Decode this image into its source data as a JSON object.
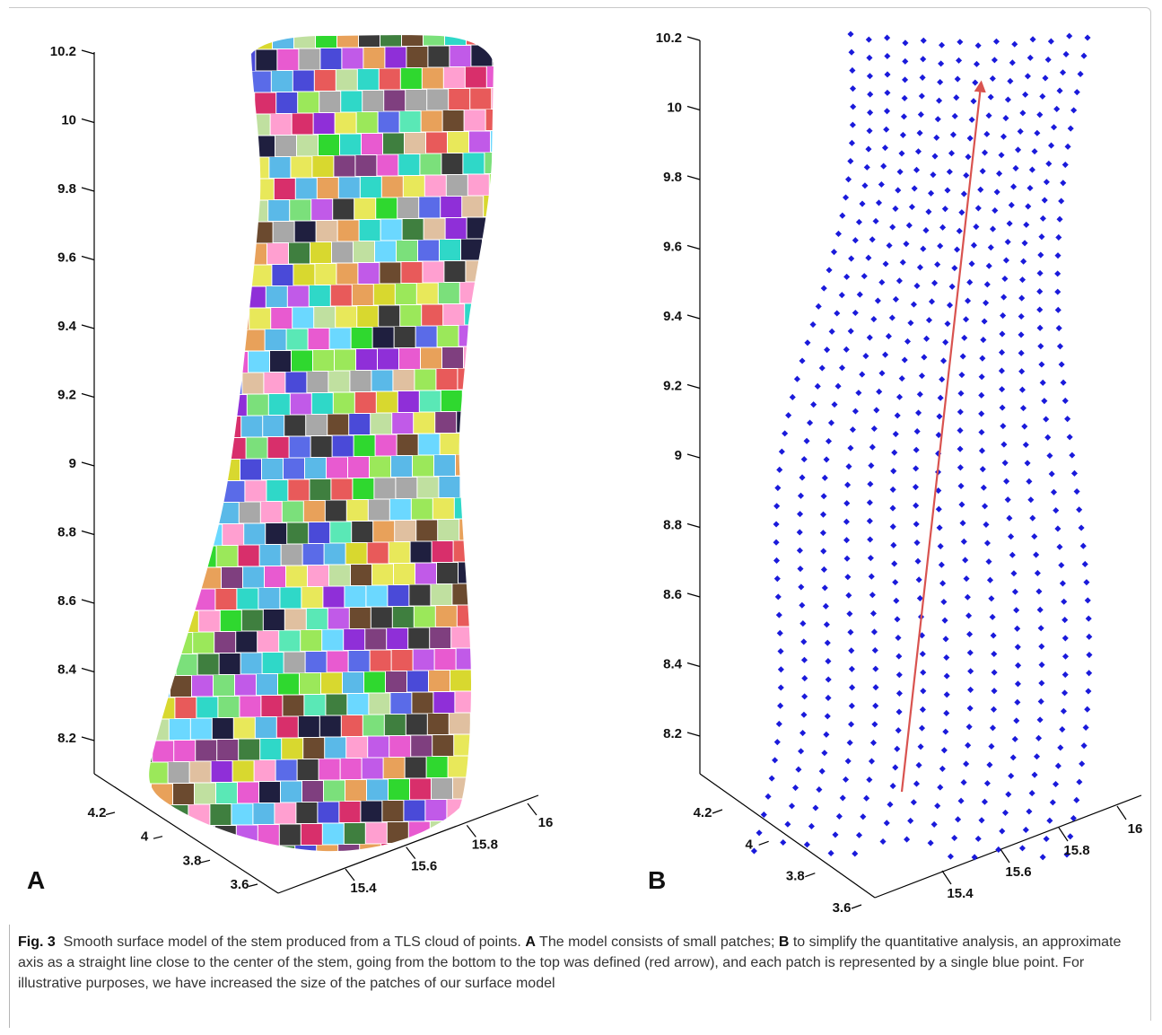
{
  "panel_a": {
    "label": "A",
    "z_ticks": [
      "10.2",
      "10",
      "9.8",
      "9.6",
      "9.4",
      "9.2",
      "9",
      "8.8",
      "8.6",
      "8.4",
      "8.2"
    ],
    "y_ticks": [
      "4.2",
      "4",
      "3.8",
      "3.6"
    ],
    "x_ticks": [
      "15.4",
      "15.6",
      "15.8",
      "16"
    ]
  },
  "panel_b": {
    "label": "B",
    "z_ticks": [
      "10.2",
      "10",
      "9.8",
      "9.6",
      "9.4",
      "9.2",
      "9",
      "8.8",
      "8.6",
      "8.4",
      "8.2"
    ],
    "y_ticks": [
      "4.2",
      "4",
      "3.8",
      "3.6"
    ],
    "x_ticks": [
      "15.4",
      "15.6",
      "15.8",
      "16"
    ]
  },
  "colors": {
    "points": "#1a1adb",
    "arrow": "#d9534f",
    "axes": "#000000"
  },
  "caption": {
    "fig_label": "Fig. 3",
    "text1": "Smooth surface model of the stem produced from a TLS cloud of points.",
    "label_a": "A",
    "text2": "The model consists of small patches;",
    "label_b": "B",
    "text3": "to simplify the quantitative analysis, an approximate axis as a straight line close to the center of the stem, going from the bottom to the top was defined (red arrow), and each patch is represented by a single blue point. For illustrative purposes, we have increased the size of the patches of our surface model"
  }
}
